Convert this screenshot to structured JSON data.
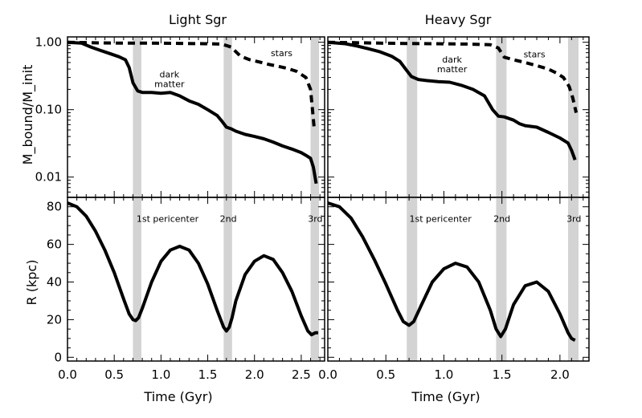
{
  "chart_data": [
    {
      "type": "line",
      "panel": "top-left",
      "title": "Light Sgr",
      "ylabel": "M_bound/M_init",
      "yscale": "log",
      "ylim": [
        0.005,
        1.2
      ],
      "xlim": [
        0,
        2.75
      ],
      "yticks": [
        {
          "value": 1.0,
          "label": "1.00"
        },
        {
          "value": 0.1,
          "label": "0.10"
        },
        {
          "value": 0.01,
          "label": "0.01"
        }
      ],
      "shaded_bands": [
        [
          0.7,
          0.79
        ],
        [
          1.67,
          1.76
        ],
        [
          2.6,
          2.69
        ]
      ],
      "annotations": [
        {
          "text": "dark",
          "x": 1.09,
          "y": 0.3
        },
        {
          "text": "matter",
          "x": 1.09,
          "y": 0.215
        },
        {
          "text": "stars",
          "x": 2.29,
          "y": 0.62
        }
      ],
      "series": [
        {
          "name": "dark matter",
          "style": "solid",
          "x": [
            0,
            0.15,
            0.25,
            0.35,
            0.45,
            0.55,
            0.62,
            0.66,
            0.7,
            0.75,
            0.8,
            0.9,
            1.0,
            1.1,
            1.2,
            1.3,
            1.4,
            1.5,
            1.6,
            1.65,
            1.7,
            1.75,
            1.8,
            1.9,
            2.0,
            2.1,
            2.2,
            2.3,
            2.4,
            2.5,
            2.55,
            2.6,
            2.63,
            2.66
          ],
          "y": [
            1.0,
            0.97,
            0.85,
            0.76,
            0.68,
            0.61,
            0.55,
            0.42,
            0.25,
            0.19,
            0.18,
            0.18,
            0.175,
            0.18,
            0.16,
            0.135,
            0.12,
            0.1,
            0.082,
            0.068,
            0.055,
            0.052,
            0.048,
            0.043,
            0.04,
            0.037,
            0.033,
            0.029,
            0.026,
            0.023,
            0.021,
            0.019,
            0.014,
            0.008
          ]
        },
        {
          "name": "stars",
          "style": "dashed",
          "x": [
            0,
            0.3,
            0.6,
            0.9,
            1.2,
            1.5,
            1.65,
            1.75,
            1.85,
            1.95,
            2.05,
            2.15,
            2.25,
            2.35,
            2.45,
            2.55,
            2.6,
            2.62,
            2.64
          ],
          "y": [
            1.0,
            0.98,
            0.97,
            0.97,
            0.96,
            0.95,
            0.94,
            0.85,
            0.62,
            0.55,
            0.51,
            0.47,
            0.44,
            0.41,
            0.37,
            0.3,
            0.2,
            0.1,
            0.05
          ]
        }
      ]
    },
    {
      "type": "line",
      "panel": "top-right",
      "title": "Heavy Sgr",
      "yscale": "log",
      "ylim": [
        0.005,
        1.2
      ],
      "xlim": [
        0,
        2.25
      ],
      "shaded_bands": [
        [
          0.68,
          0.77
        ],
        [
          1.45,
          1.54
        ],
        [
          2.07,
          2.16
        ]
      ],
      "annotations": [
        {
          "text": "dark",
          "x": 1.07,
          "y": 0.5
        },
        {
          "text": "matter",
          "x": 1.07,
          "y": 0.36
        },
        {
          "text": "stars",
          "x": 1.78,
          "y": 0.6
        }
      ],
      "series": [
        {
          "name": "dark matter",
          "style": "solid",
          "x": [
            0,
            0.15,
            0.25,
            0.35,
            0.45,
            0.55,
            0.62,
            0.67,
            0.72,
            0.78,
            0.85,
            0.95,
            1.05,
            1.15,
            1.25,
            1.35,
            1.42,
            1.47,
            1.52,
            1.6,
            1.65,
            1.7,
            1.8,
            1.9,
            2.0,
            2.07,
            2.1,
            2.13
          ],
          "y": [
            1.0,
            0.95,
            0.88,
            0.8,
            0.72,
            0.62,
            0.52,
            0.4,
            0.31,
            0.28,
            0.27,
            0.26,
            0.255,
            0.23,
            0.2,
            0.16,
            0.1,
            0.08,
            0.078,
            0.07,
            0.062,
            0.058,
            0.055,
            0.046,
            0.038,
            0.032,
            0.025,
            0.018
          ]
        },
        {
          "name": "stars",
          "style": "dashed",
          "x": [
            0,
            0.3,
            0.6,
            0.9,
            1.2,
            1.4,
            1.47,
            1.52,
            1.6,
            1.7,
            1.8,
            1.9,
            1.97,
            2.03,
            2.08,
            2.11,
            2.14
          ],
          "y": [
            1.0,
            0.98,
            0.96,
            0.95,
            0.94,
            0.92,
            0.82,
            0.6,
            0.55,
            0.5,
            0.45,
            0.4,
            0.35,
            0.3,
            0.22,
            0.15,
            0.09
          ]
        }
      ]
    },
    {
      "type": "line",
      "panel": "bottom-left",
      "xlabel": "Time (Gyr)",
      "ylabel": "R (kpc)",
      "xlim": [
        0,
        2.75
      ],
      "ylim": [
        -2,
        85
      ],
      "xticks": [
        {
          "value": 0.0,
          "label": "0.0"
        },
        {
          "value": 0.5,
          "label": "0.5"
        },
        {
          "value": 1.0,
          "label": "1.0"
        },
        {
          "value": 1.5,
          "label": "1.5"
        },
        {
          "value": 2.0,
          "label": "2.0"
        },
        {
          "value": 2.5,
          "label": "2.5"
        }
      ],
      "yticks": [
        {
          "value": 0,
          "label": "0"
        },
        {
          "value": 20,
          "label": "20"
        },
        {
          "value": 40,
          "label": "40"
        },
        {
          "value": 60,
          "label": "60"
        },
        {
          "value": 80,
          "label": "80"
        }
      ],
      "shaded_bands": [
        [
          0.7,
          0.79
        ],
        [
          1.67,
          1.76
        ],
        [
          2.6,
          2.69
        ]
      ],
      "annotations": [
        {
          "text": "1st pericenter",
          "x": 1.07,
          "y": 72
        },
        {
          "text": "2nd",
          "x": 1.72,
          "y": 72
        },
        {
          "text": "3rd",
          "x": 2.65,
          "y": 72
        }
      ],
      "series": [
        {
          "name": "orbit",
          "style": "solid",
          "x": [
            0,
            0.1,
            0.2,
            0.3,
            0.4,
            0.5,
            0.6,
            0.66,
            0.7,
            0.73,
            0.76,
            0.8,
            0.9,
            1.0,
            1.1,
            1.2,
            1.3,
            1.4,
            1.5,
            1.6,
            1.67,
            1.7,
            1.73,
            1.76,
            1.8,
            1.9,
            2.0,
            2.1,
            2.2,
            2.3,
            2.4,
            2.5,
            2.57,
            2.61,
            2.65,
            2.68
          ],
          "y": [
            82,
            80,
            75,
            67,
            57,
            45,
            31,
            23,
            20,
            19.5,
            21,
            26,
            40,
            51,
            57,
            59,
            57,
            50,
            39,
            25,
            16,
            14,
            16,
            21,
            30,
            44,
            51,
            54,
            52,
            45,
            35,
            22,
            14,
            12,
            13,
            13
          ]
        }
      ]
    },
    {
      "type": "line",
      "panel": "bottom-right",
      "xlabel": "Time (Gyr)",
      "xlim": [
        0,
        2.25
      ],
      "ylim": [
        -2,
        85
      ],
      "xticks": [
        {
          "value": 0.0,
          "label": "0.0"
        },
        {
          "value": 0.5,
          "label": "0.5"
        },
        {
          "value": 1.0,
          "label": "1.0"
        },
        {
          "value": 1.5,
          "label": "1.5"
        },
        {
          "value": 2.0,
          "label": "2.0"
        }
      ],
      "shaded_bands": [
        [
          0.68,
          0.77
        ],
        [
          1.45,
          1.54
        ],
        [
          2.07,
          2.16
        ]
      ],
      "annotations": [
        {
          "text": "1st pericenter",
          "x": 0.97,
          "y": 72
        },
        {
          "text": "2nd",
          "x": 1.5,
          "y": 72
        },
        {
          "text": "3rd",
          "x": 2.12,
          "y": 72
        }
      ],
      "series": [
        {
          "name": "orbit",
          "style": "solid",
          "x": [
            0,
            0.1,
            0.2,
            0.3,
            0.4,
            0.5,
            0.6,
            0.65,
            0.7,
            0.74,
            0.8,
            0.9,
            1.0,
            1.1,
            1.2,
            1.3,
            1.4,
            1.45,
            1.49,
            1.53,
            1.6,
            1.7,
            1.8,
            1.9,
            2.0,
            2.07,
            2.1,
            2.13
          ],
          "y": [
            82,
            80,
            74,
            64,
            52,
            39,
            25,
            19,
            17,
            19,
            27,
            40,
            47,
            50,
            48,
            40,
            25,
            15,
            11,
            15,
            28,
            38,
            40,
            35,
            23,
            13,
            10,
            9
          ]
        }
      ]
    }
  ]
}
